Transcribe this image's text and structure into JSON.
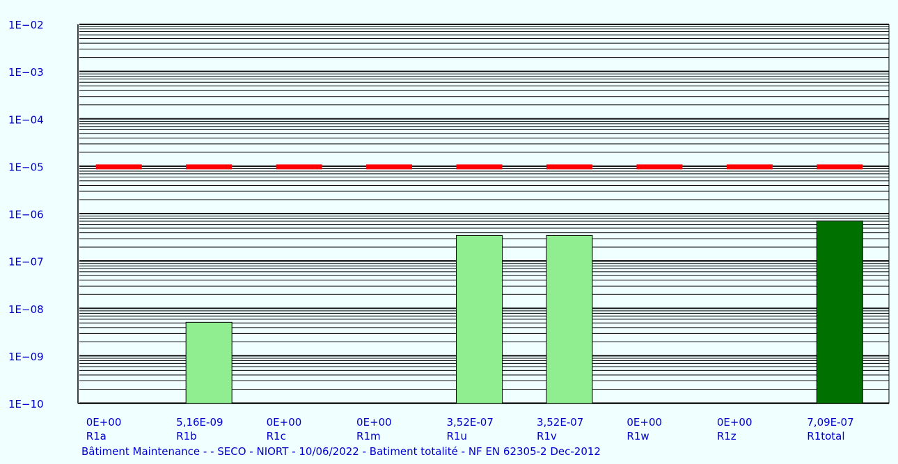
{
  "chart_data": {
    "type": "bar",
    "y_scale": "log",
    "ylim": [
      1e-10,
      0.01
    ],
    "y_tick_labels": [
      "1E−10",
      "1E−09",
      "1E−08",
      "1E−07",
      "1E−06",
      "1E−05",
      "1E−04",
      "1E−03",
      "1E−02"
    ],
    "categories": [
      "R1a",
      "R1b",
      "R1c",
      "R1m",
      "R1u",
      "R1v",
      "R1w",
      "R1z",
      "R1total"
    ],
    "value_labels": [
      "0E+00",
      "5,16E-09",
      "0E+00",
      "0E+00",
      "3,52E-07",
      "3,52E-07",
      "0E+00",
      "0E+00",
      "7,09E-07"
    ],
    "values": [
      0,
      5.16e-09,
      0,
      0,
      3.52e-07,
      3.52e-07,
      0,
      0,
      7.09e-07
    ],
    "bar_colors": [
      "#90ee90",
      "#90ee90",
      "#90ee90",
      "#90ee90",
      "#90ee90",
      "#90ee90",
      "#90ee90",
      "#90ee90",
      "#007000"
    ],
    "tolerable_risk": 1e-05,
    "tolerable_risk_color": "#ff0000",
    "grid": true,
    "caption": "Bâtiment Maintenance -  - SECO - NIORT - 10/06/2022 - Batiment totalité -  NF EN 62305-2 Dec-2012"
  },
  "colors": {
    "background": "#f0ffff",
    "axis_text": "#0000cc",
    "grid": "#000000"
  }
}
